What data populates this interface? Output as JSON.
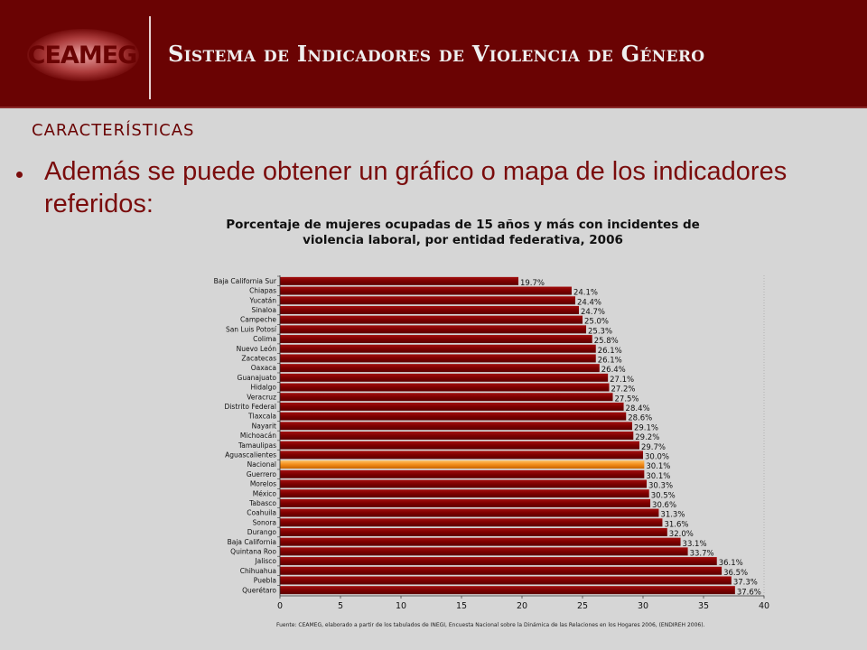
{
  "header": {
    "logo_text": "CEAMEG",
    "title": "Sistema de Indicadores de Violencia de Género"
  },
  "section_label": "CARACTERÍSTICAS",
  "bullet": "Además se puede obtener un gráfico o mapa de los indicadores referidos:",
  "colors": {
    "header_bg": "#6a0303",
    "bar": "#8b0000",
    "highlight_bar": "#f28c1a",
    "accent_text": "#7a0c0c"
  },
  "chart_data": {
    "type": "bar",
    "orientation": "horizontal",
    "title_line1": "Porcentaje de mujeres ocupadas de 15 años y más con incidentes de",
    "title_line2": "violencia laboral, por entidad federativa, 2006",
    "categories": [
      "Baja California Sur",
      "Chiapas",
      "Yucatán",
      "Sinaloa",
      "Campeche",
      "San Luis Potosí",
      "Colima",
      "Nuevo León",
      "Zacatecas",
      "Oaxaca",
      "Guanajuato",
      "Hidalgo",
      "Veracruz",
      "Distrito Federal",
      "Tlaxcala",
      "Nayarit",
      "Michoacán",
      "Tamaulipas",
      "Aguascalientes",
      "Nacional",
      "Guerrero",
      "Morelos",
      "México",
      "Tabasco",
      "Coahuila",
      "Sonora",
      "Durango",
      "Baja California",
      "Quintana Roo",
      "Jalisco",
      "Chihuahua",
      "Puebla",
      "Querétaro"
    ],
    "values": [
      19.7,
      24.1,
      24.4,
      24.7,
      25.0,
      25.3,
      25.8,
      26.1,
      26.1,
      26.4,
      27.1,
      27.2,
      27.5,
      28.4,
      28.6,
      29.1,
      29.2,
      29.7,
      30.0,
      30.1,
      30.1,
      30.3,
      30.5,
      30.6,
      31.3,
      31.6,
      32.0,
      33.1,
      33.7,
      36.1,
      36.5,
      37.3,
      37.6
    ],
    "data_labels": [
      "19.7%",
      "24.1%",
      "24.4%",
      "24.7%",
      "25.0%",
      "25.3%",
      "25.8%",
      "26.1%",
      "26.1%",
      "26.4%",
      "27.1%",
      "27.2%",
      "27.5%",
      "28.4%",
      "28.6%",
      "29.1%",
      "29.2%",
      "29.7%",
      "30.0%",
      "30.1%",
      "30.1%",
      "30.3%",
      "30.5%",
      "30.6%",
      "31.3%",
      "31.6%",
      "32.0%",
      "33.1%",
      "33.7%",
      "36.1%",
      "36.5%",
      "37.3%",
      "37.6%"
    ],
    "highlight": "Nacional",
    "xlim": [
      0,
      40
    ],
    "xticks": [
      "0",
      "5",
      "10",
      "15",
      "20",
      "25",
      "30",
      "35",
      "40"
    ],
    "xlabel": "",
    "ylabel": "",
    "grid": false,
    "source": "Fuente: CEAMEG, elaborado a partir de los tabulados de INEGI, Encuesta Nacional sobre la Dinámica de las Relaciones en los Hogares 2006, (ENDIREH 2006)."
  }
}
